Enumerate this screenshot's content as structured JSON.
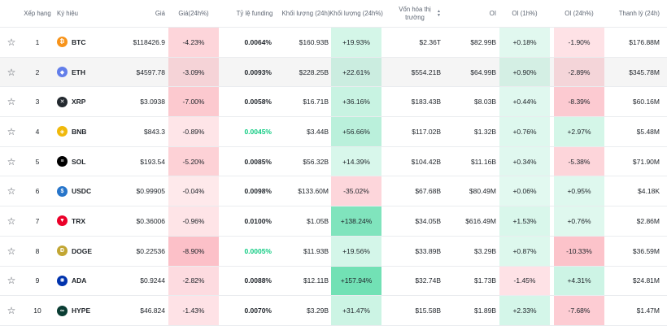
{
  "headers": {
    "rank": "Xếp hạng",
    "symbol": "Ký hiệu",
    "price": "Giá",
    "change24h": "Giá(24h%)",
    "funding": "Tỷ lệ funding",
    "volume24h": "Khối lượng (24h)",
    "volume_change24h": "Khối lượng (24h%)",
    "market_cap": "Vốn hóa thị trường",
    "oi": "OI",
    "oi_1h": "OI (1h%)",
    "oi_24h": "OI (24h%)",
    "liquidation": "Thanh lý (24h)"
  },
  "colors": {
    "btc": "#f7931a",
    "eth": "#627eea",
    "xrp": "#23292f",
    "bnb": "#f0b90b",
    "sol": "#000000",
    "usdc": "#2775ca",
    "trx": "#eb0029",
    "doge": "#c2a633",
    "ada": "#0033ad",
    "hype": "#0a3d33",
    "green_highlight": "#0ecb81"
  },
  "rows": [
    {
      "rank": "1",
      "symbol": "BTC",
      "icon": "bitcoin-icon",
      "icon_glyph": "₿",
      "price": "$118426.9",
      "change24h": "-4.23%",
      "funding": "0.0064%",
      "funding_green": false,
      "volume24h": "$160.93B",
      "volume_change24h": "+19.93%",
      "market_cap": "$2.36T",
      "oi": "$82.99B",
      "oi_1h": "+0.18%",
      "oi_24h": "-1.90%",
      "liquidation": "$176.88M",
      "levels": {
        "change24h": -4.23,
        "volume_change24h": 19.93,
        "oi_1h": 0.18,
        "oi_24h": -1.9
      }
    },
    {
      "rank": "2",
      "symbol": "ETH",
      "icon": "ethereum-icon",
      "icon_glyph": "◆",
      "price": "$4597.78",
      "change24h": "-3.09%",
      "funding": "0.0093%",
      "funding_green": false,
      "volume24h": "$228.25B",
      "volume_change24h": "+22.61%",
      "market_cap": "$554.21B",
      "oi": "$64.99B",
      "oi_1h": "+0.90%",
      "oi_24h": "-2.89%",
      "liquidation": "$345.78M",
      "levels": {
        "change24h": -3.09,
        "volume_change24h": 22.61,
        "oi_1h": 0.9,
        "oi_24h": -2.89
      }
    },
    {
      "rank": "3",
      "symbol": "XRP",
      "icon": "xrp-icon",
      "icon_glyph": "✕",
      "price": "$3.0938",
      "change24h": "-7.00%",
      "funding": "0.0058%",
      "funding_green": false,
      "volume24h": "$16.71B",
      "volume_change24h": "+36.16%",
      "market_cap": "$183.43B",
      "oi": "$8.03B",
      "oi_1h": "+0.44%",
      "oi_24h": "-8.39%",
      "liquidation": "$60.16M",
      "levels": {
        "change24h": -7.0,
        "volume_change24h": 36.16,
        "oi_1h": 0.44,
        "oi_24h": -8.39
      }
    },
    {
      "rank": "4",
      "symbol": "BNB",
      "icon": "bnb-icon",
      "icon_glyph": "◈",
      "price": "$843.3",
      "change24h": "-0.89%",
      "funding": "0.0045%",
      "funding_green": true,
      "volume24h": "$3.44B",
      "volume_change24h": "+56.66%",
      "market_cap": "$117.02B",
      "oi": "$1.32B",
      "oi_1h": "+0.76%",
      "oi_24h": "+2.97%",
      "liquidation": "$5.48M",
      "levels": {
        "change24h": -0.89,
        "volume_change24h": 56.66,
        "oi_1h": 0.76,
        "oi_24h": 2.97
      }
    },
    {
      "rank": "5",
      "symbol": "SOL",
      "icon": "solana-icon",
      "icon_glyph": "≡",
      "price": "$193.54",
      "change24h": "-5.20%",
      "funding": "0.0085%",
      "funding_green": false,
      "volume24h": "$56.32B",
      "volume_change24h": "+14.39%",
      "market_cap": "$104.42B",
      "oi": "$11.16B",
      "oi_1h": "+0.34%",
      "oi_24h": "-5.38%",
      "liquidation": "$71.90M",
      "levels": {
        "change24h": -5.2,
        "volume_change24h": 14.39,
        "oi_1h": 0.34,
        "oi_24h": -5.38
      }
    },
    {
      "rank": "6",
      "symbol": "USDC",
      "icon": "usdc-icon",
      "icon_glyph": "$",
      "price": "$0.99905",
      "change24h": "-0.04%",
      "funding": "0.0098%",
      "funding_green": false,
      "volume24h": "$133.60M",
      "volume_change24h": "-35.02%",
      "market_cap": "$67.68B",
      "oi": "$80.49M",
      "oi_1h": "+0.06%",
      "oi_24h": "+0.95%",
      "liquidation": "$4.18K",
      "levels": {
        "change24h": -0.04,
        "volume_change24h": -35.02,
        "oi_1h": 0.06,
        "oi_24h": 0.95
      }
    },
    {
      "rank": "7",
      "symbol": "TRX",
      "icon": "tron-icon",
      "icon_glyph": "▼",
      "price": "$0.36006",
      "change24h": "-0.96%",
      "funding": "0.0100%",
      "funding_green": false,
      "volume24h": "$1.05B",
      "volume_change24h": "+138.24%",
      "market_cap": "$34.05B",
      "oi": "$616.49M",
      "oi_1h": "+1.53%",
      "oi_24h": "+0.76%",
      "liquidation": "$2.86M",
      "levels": {
        "change24h": -0.96,
        "volume_change24h": 138.24,
        "oi_1h": 1.53,
        "oi_24h": 0.76
      }
    },
    {
      "rank": "8",
      "symbol": "DOGE",
      "icon": "dogecoin-icon",
      "icon_glyph": "Ð",
      "price": "$0.22536",
      "change24h": "-8.90%",
      "funding": "0.0005%",
      "funding_green": true,
      "volume24h": "$11.93B",
      "volume_change24h": "+19.56%",
      "market_cap": "$33.89B",
      "oi": "$3.29B",
      "oi_1h": "+0.87%",
      "oi_24h": "-10.33%",
      "liquidation": "$36.59M",
      "levels": {
        "change24h": -8.9,
        "volume_change24h": 19.56,
        "oi_1h": 0.87,
        "oi_24h": -10.33
      }
    },
    {
      "rank": "9",
      "symbol": "ADA",
      "icon": "cardano-icon",
      "icon_glyph": "✺",
      "price": "$0.9244",
      "change24h": "-2.82%",
      "funding": "0.0088%",
      "funding_green": false,
      "volume24h": "$12.11B",
      "volume_change24h": "+157.94%",
      "market_cap": "$32.74B",
      "oi": "$1.73B",
      "oi_1h": "-1.45%",
      "oi_24h": "+4.31%",
      "liquidation": "$24.81M",
      "levels": {
        "change24h": -2.82,
        "volume_change24h": 157.94,
        "oi_1h": -1.45,
        "oi_24h": 4.31
      }
    },
    {
      "rank": "10",
      "symbol": "HYPE",
      "icon": "hyperliquid-icon",
      "icon_glyph": "∞",
      "price": "$46.824",
      "change24h": "-1.43%",
      "funding": "0.0070%",
      "funding_green": false,
      "volume24h": "$3.29B",
      "volume_change24h": "+31.47%",
      "market_cap": "$15.58B",
      "oi": "$1.89B",
      "oi_1h": "+2.33%",
      "oi_24h": "-7.68%",
      "liquidation": "$1.47M",
      "levels": {
        "change24h": -1.43,
        "volume_change24h": 31.47,
        "oi_1h": 2.33,
        "oi_24h": -7.68
      }
    }
  ]
}
